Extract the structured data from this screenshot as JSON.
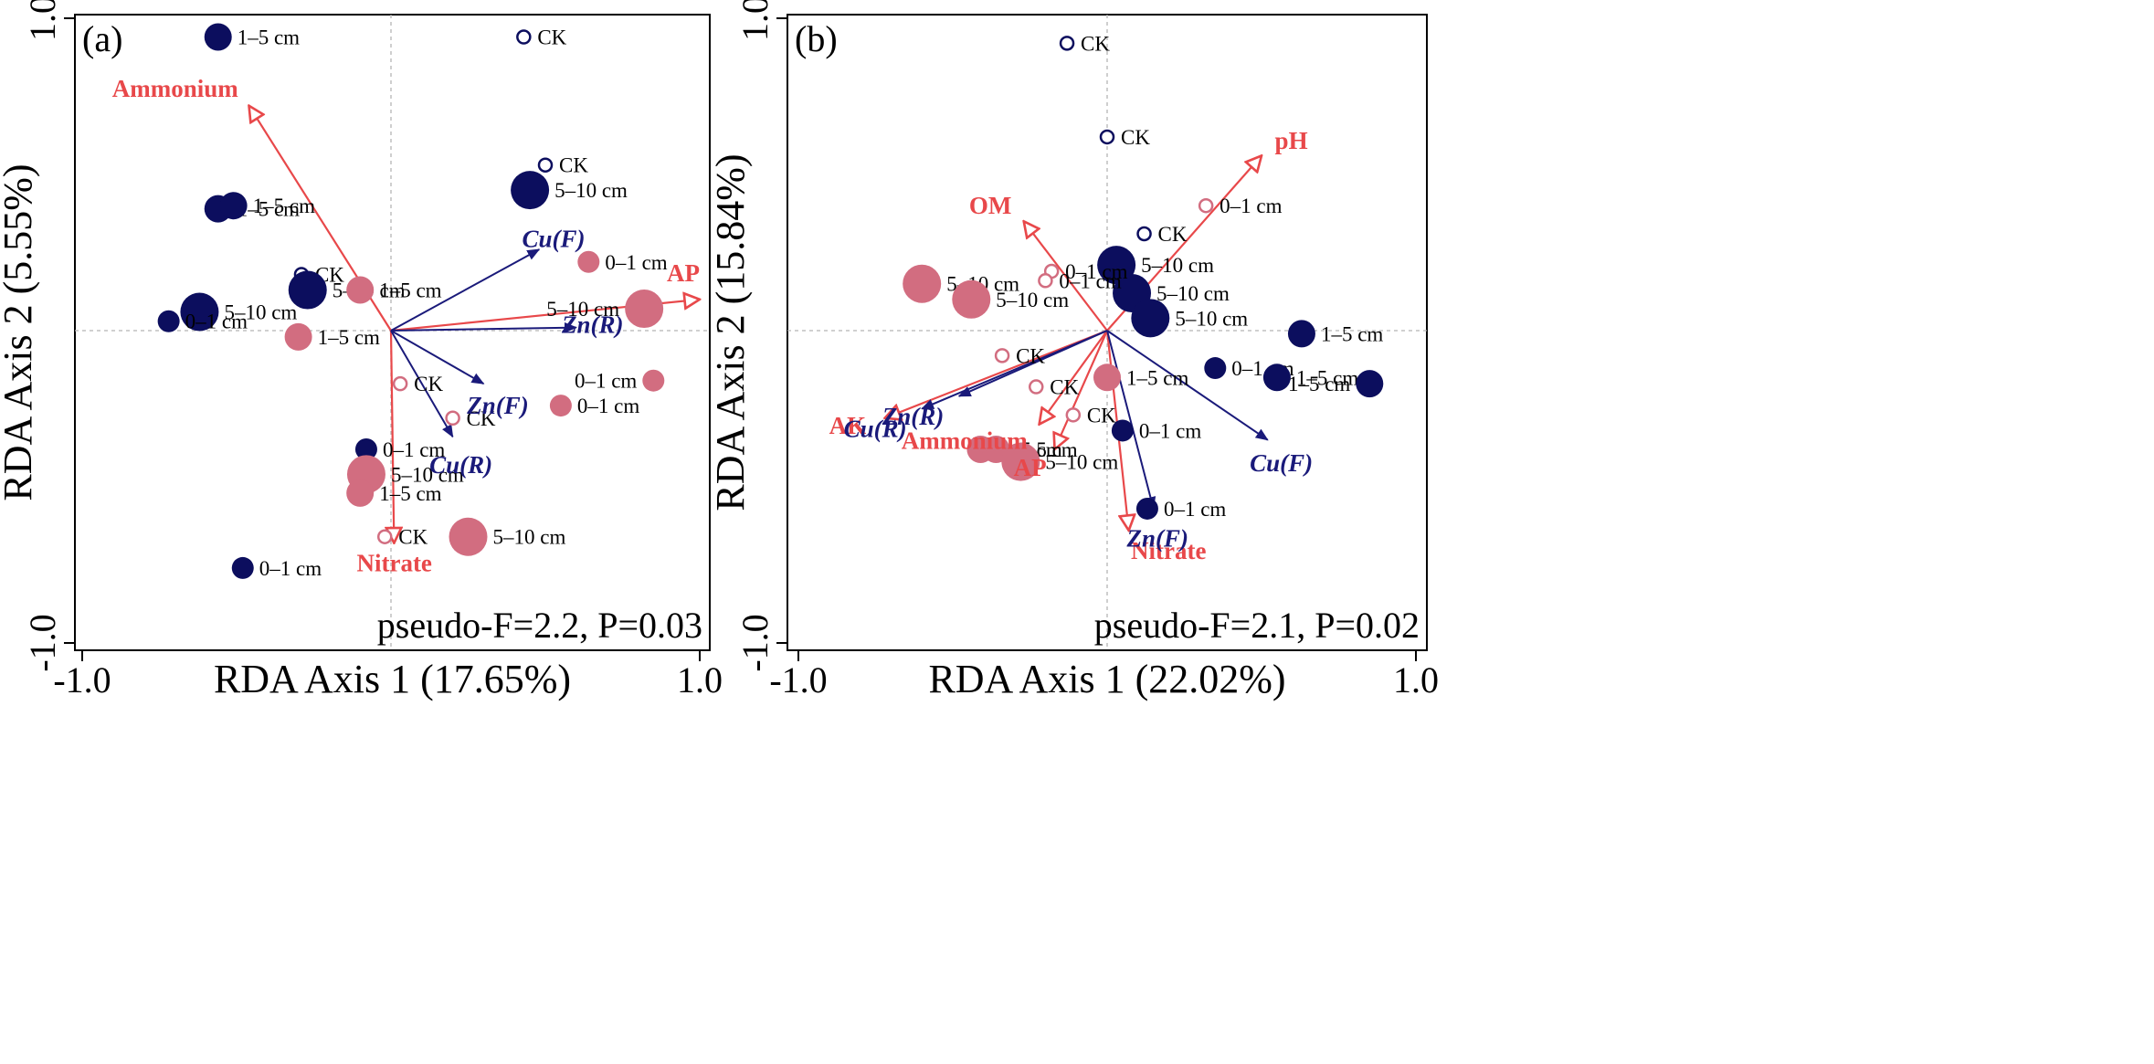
{
  "colors": {
    "navy": "#0c0e5e",
    "pink": "#d26d80",
    "env": "#e8484a",
    "species": "#1a1a7a"
  },
  "chart_data": [
    {
      "type": "scatter",
      "panel": "(a)",
      "xlabel": "RDA Axis 1 (17.65%)",
      "ylabel": "RDA Axis 2 (5.55%)",
      "xlim": [
        -1.0,
        1.0
      ],
      "ylim": [
        -1.0,
        1.0
      ],
      "xticks": [
        "-1.0",
        "1.0"
      ],
      "yticks": [
        "1.0",
        "-1.0"
      ],
      "stat": "pseudo-F=2.2, P=0.03",
      "env_vectors": [
        {
          "label": "Ammonium",
          "x": -0.46,
          "y": 0.72
        },
        {
          "label": "AP",
          "x": 1.0,
          "y": 0.1
        },
        {
          "label": "Nitrate",
          "x": 0.01,
          "y": -0.68
        }
      ],
      "species_vectors": [
        {
          "label": "Cu(F)",
          "x": 0.48,
          "y": 0.26
        },
        {
          "label": "Zn(R)",
          "x": 0.6,
          "y": 0.01
        },
        {
          "label": "Zn(F)",
          "x": 0.3,
          "y": -0.17
        },
        {
          "label": "Cu(R)",
          "x": 0.2,
          "y": -0.34
        }
      ],
      "points": [
        {
          "label": "1–5 cm",
          "x": -0.56,
          "y": 0.94,
          "group": "navy",
          "fill": "filled",
          "size": 3
        },
        {
          "label": "CK",
          "x": 0.43,
          "y": 0.94,
          "group": "navy",
          "fill": "open",
          "size": 1
        },
        {
          "label": "CK",
          "x": 0.5,
          "y": 0.53,
          "group": "navy",
          "fill": "open",
          "size": 1
        },
        {
          "label": "5–10 cm",
          "x": 0.45,
          "y": 0.45,
          "group": "navy",
          "fill": "filled",
          "size": 4
        },
        {
          "label": "1–5 cm",
          "x": -0.56,
          "y": 0.39,
          "group": "navy",
          "fill": "filled",
          "size": 3
        },
        {
          "label": "1–5 cm",
          "x": -0.51,
          "y": 0.4,
          "group": "navy",
          "fill": "filled",
          "size": 3
        },
        {
          "label": "CK",
          "x": -0.29,
          "y": 0.18,
          "group": "navy",
          "fill": "open",
          "size": 1
        },
        {
          "label": "5–10 cm",
          "x": -0.27,
          "y": 0.13,
          "group": "navy",
          "fill": "filled",
          "size": 4
        },
        {
          "label": "5–10 cm",
          "x": -0.62,
          "y": 0.06,
          "group": "navy",
          "fill": "filled",
          "size": 4
        },
        {
          "label": "0–1 cm",
          "x": -0.72,
          "y": 0.03,
          "group": "navy",
          "fill": "filled",
          "size": 2
        },
        {
          "label": "1–5 cm",
          "x": -0.1,
          "y": 0.13,
          "group": "pink",
          "fill": "filled",
          "size": 3
        },
        {
          "label": "0–1 cm",
          "x": 0.64,
          "y": 0.22,
          "group": "pink",
          "fill": "filled",
          "size": 2
        },
        {
          "label": "5–10 cm",
          "x": 0.82,
          "y": 0.07,
          "group": "pink",
          "fill": "filled",
          "size": 4
        },
        {
          "label": "1–5 cm",
          "x": -0.3,
          "y": -0.02,
          "group": "pink",
          "fill": "filled",
          "size": 3
        },
        {
          "label": "0–1 cm",
          "x": 0.85,
          "y": -0.16,
          "group": "pink",
          "fill": "filled",
          "size": 2
        },
        {
          "label": "CK",
          "x": 0.03,
          "y": -0.17,
          "group": "pink",
          "fill": "open",
          "size": 1
        },
        {
          "label": "CK",
          "x": 0.2,
          "y": -0.28,
          "group": "pink",
          "fill": "open",
          "size": 1
        },
        {
          "label": "0–1 cm",
          "x": 0.55,
          "y": -0.24,
          "group": "pink",
          "fill": "filled",
          "size": 2
        },
        {
          "label": "0–1 cm",
          "x": -0.08,
          "y": -0.38,
          "group": "navy",
          "fill": "filled",
          "size": 2
        },
        {
          "label": "5–10 cm",
          "x": -0.08,
          "y": -0.46,
          "group": "pink",
          "fill": "filled",
          "size": 4
        },
        {
          "label": "1–5 cm",
          "x": -0.1,
          "y": -0.52,
          "group": "pink",
          "fill": "filled",
          "size": 3
        },
        {
          "label": "CK",
          "x": -0.02,
          "y": -0.66,
          "group": "pink",
          "fill": "open",
          "size": 1
        },
        {
          "label": "5–10 cm",
          "x": 0.25,
          "y": -0.66,
          "group": "pink",
          "fill": "filled",
          "size": 4
        },
        {
          "label": "0–1 cm",
          "x": -0.48,
          "y": -0.76,
          "group": "navy",
          "fill": "filled",
          "size": 2
        }
      ]
    },
    {
      "type": "scatter",
      "panel": "(b)",
      "xlabel": "RDA Axis 1 (22.02%)",
      "ylabel": "RDA Axis 2 (15.84%)",
      "xlim": [
        -1.0,
        1.0
      ],
      "ylim": [
        -1.0,
        1.0
      ],
      "xticks": [
        "-1.0",
        "1.0"
      ],
      "yticks": [
        "1.0",
        "-1.0"
      ],
      "stat": "pseudo-F=2.1, P=0.02",
      "env_vectors": [
        {
          "label": "pH",
          "x": 0.5,
          "y": 0.56
        },
        {
          "label": "OM",
          "x": -0.27,
          "y": 0.35
        },
        {
          "label": "AK",
          "x": -0.72,
          "y": -0.28
        },
        {
          "label": "Ammonium",
          "x": -0.22,
          "y": -0.3
        },
        {
          "label": "AP",
          "x": -0.17,
          "y": -0.38
        },
        {
          "label": "Nitrate",
          "x": 0.07,
          "y": -0.64
        }
      ],
      "species_vectors": [
        {
          "label": "Cu(R)",
          "x": -0.6,
          "y": -0.25
        },
        {
          "label": "Zn(R)",
          "x": -0.48,
          "y": -0.21
        },
        {
          "label": "Cu(F)",
          "x": 0.52,
          "y": -0.35
        },
        {
          "label": "Zn(F)",
          "x": 0.15,
          "y": -0.57
        }
      ],
      "points": [
        {
          "label": "CK",
          "x": -0.13,
          "y": 0.92,
          "group": "navy",
          "fill": "open",
          "size": 1
        },
        {
          "label": "CK",
          "x": 0.0,
          "y": 0.62,
          "group": "navy",
          "fill": "open",
          "size": 1
        },
        {
          "label": "0–1 cm",
          "x": 0.32,
          "y": 0.4,
          "group": "pink",
          "fill": "open",
          "size": 1
        },
        {
          "label": "CK",
          "x": 0.12,
          "y": 0.31,
          "group": "navy",
          "fill": "open",
          "size": 1
        },
        {
          "label": "5–10 cm",
          "x": 0.03,
          "y": 0.21,
          "group": "navy",
          "fill": "filled",
          "size": 4
        },
        {
          "label": "5–10 cm",
          "x": 0.08,
          "y": 0.12,
          "group": "navy",
          "fill": "filled",
          "size": 4
        },
        {
          "label": "5–10 cm",
          "x": 0.14,
          "y": 0.04,
          "group": "navy",
          "fill": "filled",
          "size": 4
        },
        {
          "label": "0–1 cm",
          "x": -0.18,
          "y": 0.19,
          "group": "pink",
          "fill": "open",
          "size": 1
        },
        {
          "label": "0–1 cm",
          "x": -0.2,
          "y": 0.16,
          "group": "pink",
          "fill": "open",
          "size": 1
        },
        {
          "label": "5–10 cm",
          "x": -0.6,
          "y": 0.15,
          "group": "pink",
          "fill": "filled",
          "size": 4
        },
        {
          "label": "5–10 cm",
          "x": -0.44,
          "y": 0.1,
          "group": "pink",
          "fill": "filled",
          "size": 4
        },
        {
          "label": "CK",
          "x": -0.34,
          "y": -0.08,
          "group": "pink",
          "fill": "open",
          "size": 1
        },
        {
          "label": "CK",
          "x": -0.23,
          "y": -0.18,
          "group": "pink",
          "fill": "open",
          "size": 1
        },
        {
          "label": "CK",
          "x": -0.11,
          "y": -0.27,
          "group": "pink",
          "fill": "open",
          "size": 1
        },
        {
          "label": "1–5 cm",
          "x": 0.0,
          "y": -0.15,
          "group": "pink",
          "fill": "filled",
          "size": 3
        },
        {
          "label": "1–5 cm",
          "x": 0.63,
          "y": -0.01,
          "group": "navy",
          "fill": "filled",
          "size": 3
        },
        {
          "label": "0–1 cm",
          "x": 0.35,
          "y": -0.12,
          "group": "navy",
          "fill": "filled",
          "size": 2
        },
        {
          "label": "1–5 cm",
          "x": 0.55,
          "y": -0.15,
          "group": "navy",
          "fill": "filled",
          "size": 3
        },
        {
          "label": "1–5 cm",
          "x": 0.85,
          "y": -0.17,
          "group": "navy",
          "fill": "filled",
          "size": 3
        },
        {
          "label": "0–1 cm",
          "x": 0.05,
          "y": -0.32,
          "group": "navy",
          "fill": "filled",
          "size": 2
        },
        {
          "label": "1–5 cm",
          "x": -0.41,
          "y": -0.38,
          "group": "pink",
          "fill": "filled",
          "size": 3
        },
        {
          "label": "1–5 cm",
          "x": -0.36,
          "y": -0.38,
          "group": "pink",
          "fill": "filled",
          "size": 3
        },
        {
          "label": "5–10 cm",
          "x": -0.28,
          "y": -0.42,
          "group": "pink",
          "fill": "filled",
          "size": 4
        },
        {
          "label": "0–1 cm",
          "x": 0.13,
          "y": -0.57,
          "group": "navy",
          "fill": "filled",
          "size": 2
        }
      ]
    }
  ]
}
